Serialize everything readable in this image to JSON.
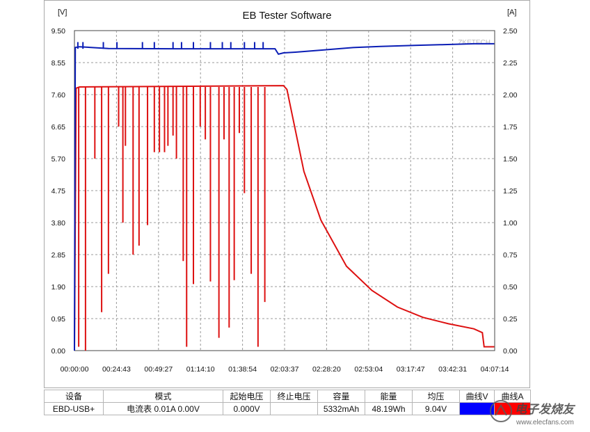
{
  "title": "EB Tester Software",
  "left_unit": "[V]",
  "right_unit": "[A]",
  "watermark_text": "ZKETECH",
  "colors": {
    "voltage": "#0a1db5",
    "current": "#dd1010",
    "grid": "#9a9a9a"
  },
  "chart_data": {
    "type": "line",
    "y_ticks_left": [
      "9.50",
      "8.55",
      "7.60",
      "6.65",
      "5.70",
      "4.75",
      "3.80",
      "2.85",
      "1.90",
      "0.95",
      "0.00"
    ],
    "y_ticks_right": [
      "2.50",
      "2.25",
      "2.00",
      "1.75",
      "1.50",
      "1.25",
      "1.00",
      "0.75",
      "0.50",
      "0.25",
      "0.00"
    ],
    "x_ticks": [
      "00:00:00",
      "00:24:43",
      "00:49:27",
      "01:14:10",
      "01:38:54",
      "02:03:37",
      "02:28:20",
      "02:53:04",
      "03:17:47",
      "03:42:31",
      "04:07:14"
    ],
    "ylim_left": [
      0,
      9.5
    ],
    "ylim_right": [
      0,
      2.5
    ],
    "x_range_min": [
      0,
      247.23
    ],
    "grid": true,
    "series": [
      {
        "axis": "left",
        "points": [
          [
            0,
            0
          ],
          [
            0.5,
            9.0
          ],
          [
            3,
            9.02
          ],
          [
            20,
            8.97
          ],
          [
            60,
            8.96
          ],
          [
            100,
            8.96
          ],
          [
            118,
            8.96
          ],
          [
            120,
            8.8
          ],
          [
            123,
            8.84
          ],
          [
            130,
            8.86
          ],
          [
            145,
            8.92
          ],
          [
            155,
            8.96
          ],
          [
            165,
            9.0
          ],
          [
            180,
            9.03
          ],
          [
            200,
            9.06
          ],
          [
            215,
            9.08
          ],
          [
            235,
            9.11
          ],
          [
            247,
            9.11
          ]
        ],
        "spikes": [
          2,
          5,
          17,
          25,
          40,
          47,
          58,
          63,
          70,
          80,
          87,
          92,
          100,
          106,
          111
        ],
        "spike_peak": 9.16
      },
      {
        "axis": "right",
        "points": [
          [
            0,
            0
          ],
          [
            1,
            2.05
          ],
          [
            3,
            2.06
          ],
          [
            123,
            2.07
          ],
          [
            125,
            2.04
          ],
          [
            135,
            1.4
          ],
          [
            145,
            1.02
          ],
          [
            160,
            0.66
          ],
          [
            175,
            0.47
          ],
          [
            190,
            0.34
          ],
          [
            205,
            0.26
          ],
          [
            220,
            0.21
          ],
          [
            235,
            0.17
          ],
          [
            240,
            0.14
          ],
          [
            241,
            0.03
          ],
          [
            247,
            0.03
          ]
        ],
        "dropouts": [
          [
            2.5,
            0.03
          ],
          [
            6.5,
            0.0
          ],
          [
            12,
            1.5
          ],
          [
            16,
            0.3
          ],
          [
            20,
            0.6
          ],
          [
            26,
            1.75
          ],
          [
            28.5,
            1.0
          ],
          [
            30,
            1.6
          ],
          [
            34.5,
            0.75
          ],
          [
            38,
            0.82
          ],
          [
            43,
            0.98
          ],
          [
            47,
            1.55
          ],
          [
            50,
            1.55
          ],
          [
            53,
            1.55
          ],
          [
            55,
            1.6
          ],
          [
            58,
            1.68
          ],
          [
            60,
            1.5
          ],
          [
            64,
            0.7
          ],
          [
            66,
            0.03
          ],
          [
            70,
            0.52
          ],
          [
            74,
            1.75
          ],
          [
            77,
            1.65
          ],
          [
            80,
            0.54
          ],
          [
            85,
            0.1
          ],
          [
            88,
            1.65
          ],
          [
            91,
            0.18
          ],
          [
            94,
            0.55
          ],
          [
            97,
            1.7
          ],
          [
            100,
            1.23
          ],
          [
            104,
            0.6
          ],
          [
            108,
            0.03
          ],
          [
            112,
            0.38
          ]
        ]
      }
    ]
  },
  "table": {
    "headers": [
      "设备",
      "模式",
      "起始电压",
      "终止电压",
      "容量",
      "能量",
      "均压",
      "曲线V",
      "曲线A"
    ],
    "row": {
      "device": "EBD-USB+",
      "mode": "电流表  0.01A  0.00V",
      "start_v": "0.000V",
      "end_v": "",
      "capacity": "5332mAh",
      "energy": "48.19Wh",
      "avg_v": "9.04V"
    }
  },
  "brand": {
    "name": "电子发烧友",
    "url": "www.elecfans.com"
  }
}
